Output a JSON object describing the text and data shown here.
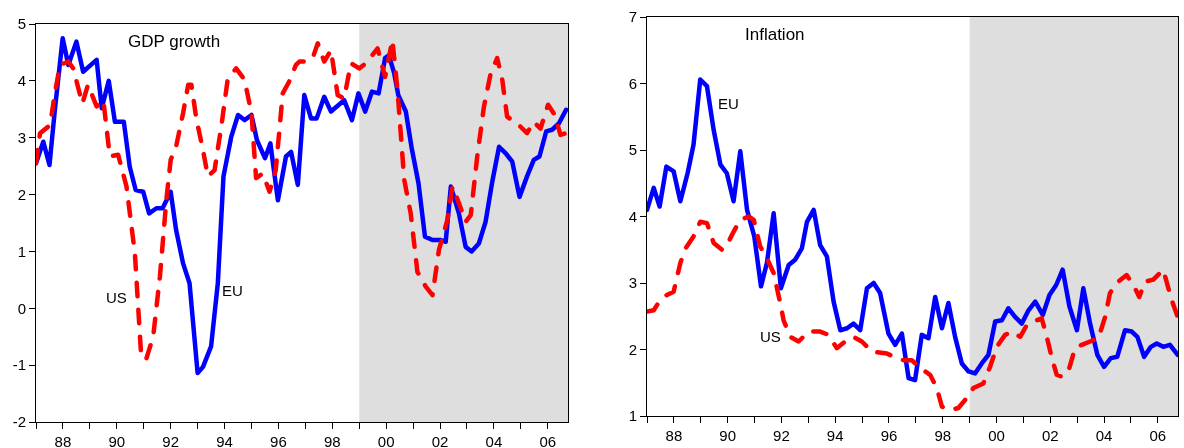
{
  "chart_data": [
    {
      "type": "line",
      "title": "GDP growth",
      "xlim": [
        1987,
        2006.75
      ],
      "ylim": [
        -2,
        5
      ],
      "yticks": [
        -2,
        -1,
        0,
        1,
        2,
        3,
        4,
        5
      ],
      "xticks": [
        {
          "value": 1987,
          "label": null
        },
        {
          "value": 1988,
          "label": "88"
        },
        {
          "value": 1989,
          "label": null
        },
        {
          "value": 1990,
          "label": "90"
        },
        {
          "value": 1991,
          "label": null
        },
        {
          "value": 1992,
          "label": "92"
        },
        {
          "value": 1993,
          "label": null
        },
        {
          "value": 1994,
          "label": "94"
        },
        {
          "value": 1995,
          "label": null
        },
        {
          "value": 1996,
          "label": "96"
        },
        {
          "value": 1997,
          "label": null
        },
        {
          "value": 1998,
          "label": "98"
        },
        {
          "value": 1999,
          "label": null
        },
        {
          "value": 2000,
          "label": "00"
        },
        {
          "value": 2001,
          "label": null
        },
        {
          "value": 2002,
          "label": "02"
        },
        {
          "value": 2003,
          "label": null
        },
        {
          "value": 2004,
          "label": "04"
        },
        {
          "value": 2005,
          "label": null
        },
        {
          "value": 2006,
          "label": "06"
        }
      ],
      "grid": false,
      "legend": false,
      "bands": [
        {
          "axis": "x",
          "from": 1999,
          "to": 2006.75,
          "color": "#dedede"
        }
      ],
      "series": [
        {
          "name": "EU",
          "color": "#0000ff",
          "line_style": "solid",
          "x": [
            1987.0,
            1987.27,
            1987.5,
            1987.7,
            1987.99,
            1988.2,
            1988.5,
            1988.75,
            1989.25,
            1989.44,
            1989.7,
            1989.93,
            1990.26,
            1990.48,
            1990.7,
            1990.98,
            1991.2,
            1991.47,
            1991.7,
            1992.0,
            1992.2,
            1992.46,
            1992.7,
            1993.0,
            1993.2,
            1993.5,
            1993.75,
            1993.96,
            1994.25,
            1994.5,
            1994.74,
            1995.0,
            1995.2,
            1995.5,
            1995.7,
            1995.98,
            1996.28,
            1996.47,
            1996.72,
            1996.96,
            1997.21,
            1997.42,
            1997.7,
            1997.95,
            1998.44,
            1998.73,
            1998.97,
            1999.22,
            1999.47,
            1999.72,
            1999.96,
            2000.1,
            2000.3,
            2000.45,
            2000.73,
            2000.95,
            2001.2,
            2001.44,
            2001.72,
            2002.03,
            2002.21,
            2002.4,
            2002.7,
            2002.95,
            2003.17,
            2003.44,
            2003.69,
            2003.94,
            2004.19,
            2004.43,
            2004.68,
            2004.95,
            2005.23,
            2005.48,
            2005.69,
            2005.94,
            2006.16,
            2006.41,
            2006.68
          ],
          "values": [
            2.55,
            2.93,
            2.52,
            3.49,
            4.75,
            4.28,
            4.69,
            4.16,
            4.37,
            3.52,
            4.0,
            3.28,
            3.28,
            2.49,
            2.08,
            2.05,
            1.67,
            1.76,
            1.76,
            2.05,
            1.38,
            0.79,
            0.44,
            -1.14,
            -1.03,
            -0.67,
            0.44,
            2.32,
            3.02,
            3.4,
            3.31,
            3.4,
            2.96,
            2.64,
            2.9,
            1.9,
            2.67,
            2.75,
            2.17,
            3.75,
            3.34,
            3.34,
            3.72,
            3.46,
            3.66,
            3.31,
            3.78,
            3.46,
            3.81,
            3.78,
            4.4,
            4.45,
            4.13,
            3.75,
            3.46,
            2.81,
            2.2,
            1.26,
            1.2,
            1.2,
            1.17,
            2.14,
            1.67,
            1.08,
            1.0,
            1.14,
            1.52,
            2.23,
            2.84,
            2.73,
            2.58,
            1.96,
            2.32,
            2.61,
            2.67,
            3.11,
            3.14,
            3.25,
            3.49
          ]
        },
        {
          "name": "US",
          "color": "#ff0000",
          "line_style": "dashed",
          "x": [
            1987.0,
            1987.15,
            1987.52,
            1987.7,
            1987.89,
            1988.2,
            1988.38,
            1988.72,
            1988.93,
            1989.25,
            1989.5,
            1989.74,
            1990.05,
            1990.36,
            1990.67,
            1990.91,
            1991.1,
            1991.35,
            1991.6,
            1991.84,
            1992.0,
            1992.2,
            1992.46,
            1992.65,
            1992.77,
            1992.95,
            1993.2,
            1993.38,
            1993.63,
            1993.88,
            1994.12,
            1994.43,
            1994.74,
            1995.0,
            1995.17,
            1995.42,
            1995.67,
            1995.9,
            1996.16,
            1996.4,
            1996.65,
            1996.78,
            1997.03,
            1997.27,
            1997.46,
            1997.7,
            1997.95,
            1998.2,
            1998.44,
            1998.69,
            1999.0,
            1999.25,
            1999.68,
            1999.96,
            2000.23,
            2000.42,
            2000.67,
            2000.91,
            2001.16,
            2001.47,
            2001.72,
            2001.96,
            2002.27,
            2002.46,
            2002.7,
            2002.95,
            2003.14,
            2003.38,
            2003.63,
            2003.88,
            2004.12,
            2004.31,
            2004.49,
            2004.93,
            2005.23,
            2005.48,
            2005.73,
            2006.01,
            2006.26,
            2006.47,
            2006.68
          ],
          "values": [
            2.55,
            3.08,
            3.22,
            3.78,
            4.28,
            4.34,
            4.22,
            3.6,
            3.93,
            3.55,
            3.66,
            2.67,
            2.7,
            2.14,
            0.97,
            -0.88,
            -0.88,
            -0.5,
            0.56,
            1.91,
            2.61,
            2.84,
            3.43,
            3.93,
            3.93,
            3.34,
            2.78,
            2.32,
            2.43,
            3.2,
            4.04,
            4.22,
            4.02,
            3.43,
            2.29,
            2.37,
            2.05,
            2.43,
            3.78,
            3.99,
            4.28,
            4.34,
            4.34,
            4.4,
            4.66,
            4.34,
            4.54,
            3.75,
            3.69,
            4.31,
            4.22,
            4.31,
            4.57,
            4.07,
            4.72,
            3.84,
            2.26,
            1.67,
            0.64,
            0.38,
            0.23,
            1.03,
            1.55,
            2.14,
            1.85,
            1.52,
            1.64,
            2.67,
            3.55,
            4.13,
            4.4,
            4.02,
            3.37,
            3.22,
            3.08,
            3.28,
            3.16,
            3.58,
            3.4,
            3.05,
            3.08
          ]
        }
      ]
    },
    {
      "type": "line",
      "title": "Inflation",
      "xlim": [
        1987,
        2006.75
      ],
      "ylim": [
        1,
        7
      ],
      "yticks": [
        1,
        2,
        3,
        4,
        5,
        6,
        7
      ],
      "xticks": [
        {
          "value": 1987,
          "label": null
        },
        {
          "value": 1988,
          "label": "88"
        },
        {
          "value": 1989,
          "label": null
        },
        {
          "value": 1990,
          "label": "90"
        },
        {
          "value": 1991,
          "label": null
        },
        {
          "value": 1992,
          "label": "92"
        },
        {
          "value": 1993,
          "label": null
        },
        {
          "value": 1994,
          "label": "94"
        },
        {
          "value": 1995,
          "label": null
        },
        {
          "value": 1996,
          "label": "96"
        },
        {
          "value": 1997,
          "label": null
        },
        {
          "value": 1998,
          "label": "98"
        },
        {
          "value": 1999,
          "label": null
        },
        {
          "value": 2000,
          "label": "00"
        },
        {
          "value": 2001,
          "label": null
        },
        {
          "value": 2002,
          "label": "02"
        },
        {
          "value": 2003,
          "label": null
        },
        {
          "value": 2004,
          "label": "04"
        },
        {
          "value": 2005,
          "label": null
        },
        {
          "value": 2006,
          "label": "06"
        }
      ],
      "grid": false,
      "legend": false,
      "bands": [
        {
          "axis": "x",
          "from": 1999,
          "to": 2006.75,
          "color": "#dedede"
        }
      ],
      "series": [
        {
          "name": "EU",
          "color": "#0000ff",
          "line_style": "solid",
          "x": [
            1987.0,
            1987.25,
            1987.47,
            1987.72,
            1987.99,
            1988.24,
            1988.51,
            1988.73,
            1988.98,
            1989.23,
            1989.48,
            1989.73,
            1989.97,
            1990.22,
            1990.47,
            1990.72,
            1990.99,
            1991.24,
            1991.46,
            1991.71,
            1991.98,
            1992.27,
            1992.51,
            1992.76,
            1992.95,
            1993.2,
            1993.44,
            1993.69,
            1993.94,
            1994.19,
            1994.44,
            1994.68,
            1994.93,
            1995.18,
            1995.43,
            1995.67,
            1995.98,
            1996.23,
            1996.48,
            1996.73,
            1996.97,
            1997.22,
            1997.47,
            1997.72,
            1997.97,
            1998.21,
            1998.46,
            1998.71,
            1998.96,
            1999.2,
            1999.45,
            1999.7,
            1999.95,
            2000.2,
            2000.44,
            2000.69,
            2000.94,
            2001.19,
            2001.44,
            2001.72,
            2001.97,
            2002.22,
            2002.46,
            2002.71,
            2002.99,
            2003.23,
            2003.48,
            2003.75,
            2004.0,
            2004.25,
            2004.49,
            2004.78,
            2005.03,
            2005.24,
            2005.49,
            2005.74,
            2005.96,
            2006.2,
            2006.45,
            2006.74
          ],
          "values": [
            4.1,
            4.43,
            4.15,
            4.75,
            4.68,
            4.23,
            4.65,
            5.08,
            6.06,
            5.96,
            5.3,
            4.78,
            4.65,
            4.23,
            4.98,
            4.1,
            3.7,
            2.95,
            3.3,
            4.05,
            2.92,
            3.27,
            3.35,
            3.52,
            3.92,
            4.1,
            3.57,
            3.4,
            2.72,
            2.29,
            2.32,
            2.39,
            2.29,
            2.92,
            3.0,
            2.85,
            2.24,
            2.07,
            2.24,
            1.57,
            1.54,
            2.22,
            2.17,
            2.79,
            2.32,
            2.7,
            2.19,
            1.79,
            1.67,
            1.64,
            1.79,
            1.92,
            2.42,
            2.44,
            2.62,
            2.49,
            2.39,
            2.59,
            2.72,
            2.52,
            2.82,
            2.97,
            3.2,
            2.65,
            2.29,
            2.92,
            2.39,
            1.92,
            1.74,
            1.87,
            1.89,
            2.29,
            2.27,
            2.19,
            1.89,
            2.04,
            2.09,
            2.04,
            2.07,
            1.92
          ]
        },
        {
          "name": "US",
          "color": "#ff0000",
          "line_style": "dashed",
          "x": [
            1987.0,
            1987.25,
            1987.5,
            1987.74,
            1987.99,
            1988.24,
            1988.43,
            1988.73,
            1988.98,
            1989.23,
            1989.48,
            1989.79,
            1989.97,
            1990.22,
            1990.47,
            1990.78,
            1990.97,
            1991.21,
            1991.46,
            1991.71,
            1991.96,
            1992.08,
            1992.33,
            1992.64,
            1993.01,
            1993.44,
            1993.75,
            1994.06,
            1994.43,
            1994.68,
            1994.99,
            1995.36,
            1995.92,
            1996.29,
            1996.54,
            1996.85,
            1997.16,
            1997.53,
            1997.78,
            1997.97,
            1998.28,
            1998.58,
            1998.83,
            1999.14,
            1999.51,
            1999.76,
            2000.01,
            2000.32,
            2000.57,
            2000.88,
            2001.13,
            2001.37,
            2001.68,
            2001.87,
            2002.06,
            2002.24,
            2002.43,
            2002.67,
            2002.92,
            2003.17,
            2003.48,
            2003.79,
            2004.04,
            2004.22,
            2004.53,
            2004.84,
            2005.09,
            2005.31,
            2005.52,
            2005.83,
            2006.2,
            2006.51,
            2006.74
          ],
          "values": [
            2.57,
            2.59,
            2.75,
            2.82,
            2.87,
            3.3,
            3.52,
            3.7,
            3.92,
            3.9,
            3.6,
            3.5,
            3.57,
            3.77,
            3.95,
            4.0,
            3.95,
            3.55,
            3.37,
            3.15,
            2.69,
            2.44,
            2.19,
            2.12,
            2.27,
            2.27,
            2.22,
            2.02,
            2.14,
            2.19,
            2.12,
            1.97,
            1.94,
            1.87,
            1.84,
            1.84,
            1.72,
            1.62,
            1.42,
            1.14,
            1.09,
            1.12,
            1.24,
            1.42,
            1.49,
            1.74,
            2.04,
            2.22,
            2.27,
            2.19,
            2.37,
            2.42,
            2.47,
            2.19,
            1.87,
            1.62,
            1.59,
            1.67,
            2.02,
            2.07,
            2.12,
            2.17,
            2.49,
            2.85,
            3.02,
            3.12,
            2.97,
            2.79,
            3.02,
            3.05,
            3.2,
            2.75,
            2.49
          ]
        }
      ]
    }
  ]
}
